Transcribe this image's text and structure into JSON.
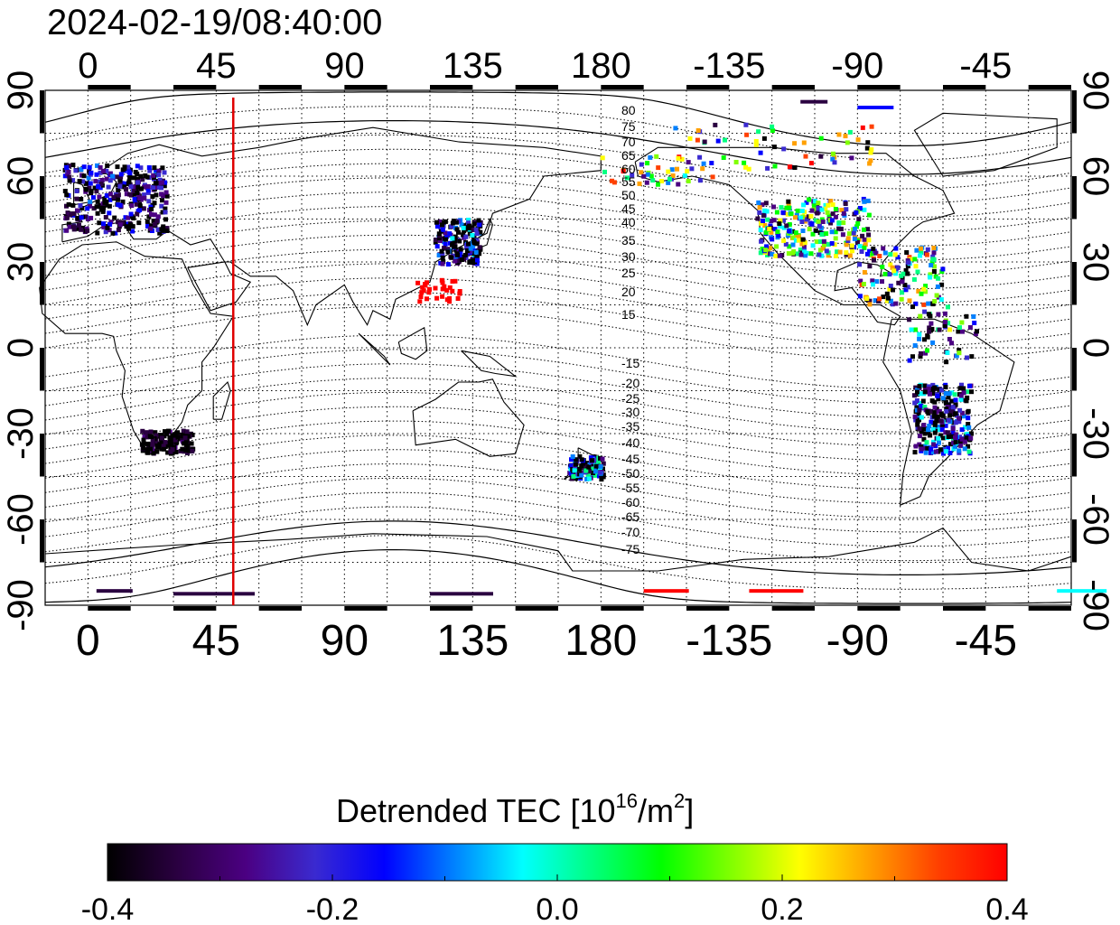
{
  "timestamp": "2024-02-19/08:40:00",
  "lon_ticks": [
    {
      "lon": 0,
      "label": "0"
    },
    {
      "lon": 45,
      "label": "45"
    },
    {
      "lon": 90,
      "label": "90"
    },
    {
      "lon": 135,
      "label": "135"
    },
    {
      "lon": 180,
      "label": "180"
    },
    {
      "lon": 225,
      "label": "-135"
    },
    {
      "lon": 270,
      "label": "-90"
    },
    {
      "lon": 315,
      "label": "-45"
    }
  ],
  "lat_ticks": [
    {
      "lat": 90,
      "label": "90"
    },
    {
      "lat": 60,
      "label": "60"
    },
    {
      "lat": 30,
      "label": "30"
    },
    {
      "lat": 0,
      "label": "0"
    },
    {
      "lat": -30,
      "label": "-30"
    },
    {
      "lat": -60,
      "label": "-60"
    },
    {
      "lat": -90,
      "label": "-90"
    }
  ],
  "contour_labels_north": [
    "80",
    "75",
    "70",
    "65",
    "60",
    "55",
    "50",
    "45",
    "40",
    "35",
    "30",
    "25",
    "20",
    "15"
  ],
  "contour_labels_south": [
    "-15",
    "-20",
    "-25",
    "-30",
    "-35",
    "-40",
    "-45",
    "-50",
    "-55",
    "-60",
    "-65",
    "-70",
    "-75"
  ],
  "meridian_marker_lon": 51,
  "marker_color": "#e00000",
  "colorbar": {
    "title": "Detrended TEC",
    "unit_base": "[10",
    "unit_exp": "16",
    "unit_mid": "/m",
    "unit_exp2": "2",
    "unit_end": "]",
    "min": -0.4,
    "max": 0.4,
    "tick_labels": [
      "-0.4",
      "-0.2",
      "0.0",
      "0.2",
      "0.4"
    ],
    "colors": [
      "#000000",
      "#2a0040",
      "#4b0082",
      "#3a2ad0",
      "#0000ff",
      "#0080ff",
      "#00ffff",
      "#00ff80",
      "#00ff00",
      "#80ff00",
      "#ffff00",
      "#ffa000",
      "#ff4000",
      "#ff0000"
    ]
  }
}
